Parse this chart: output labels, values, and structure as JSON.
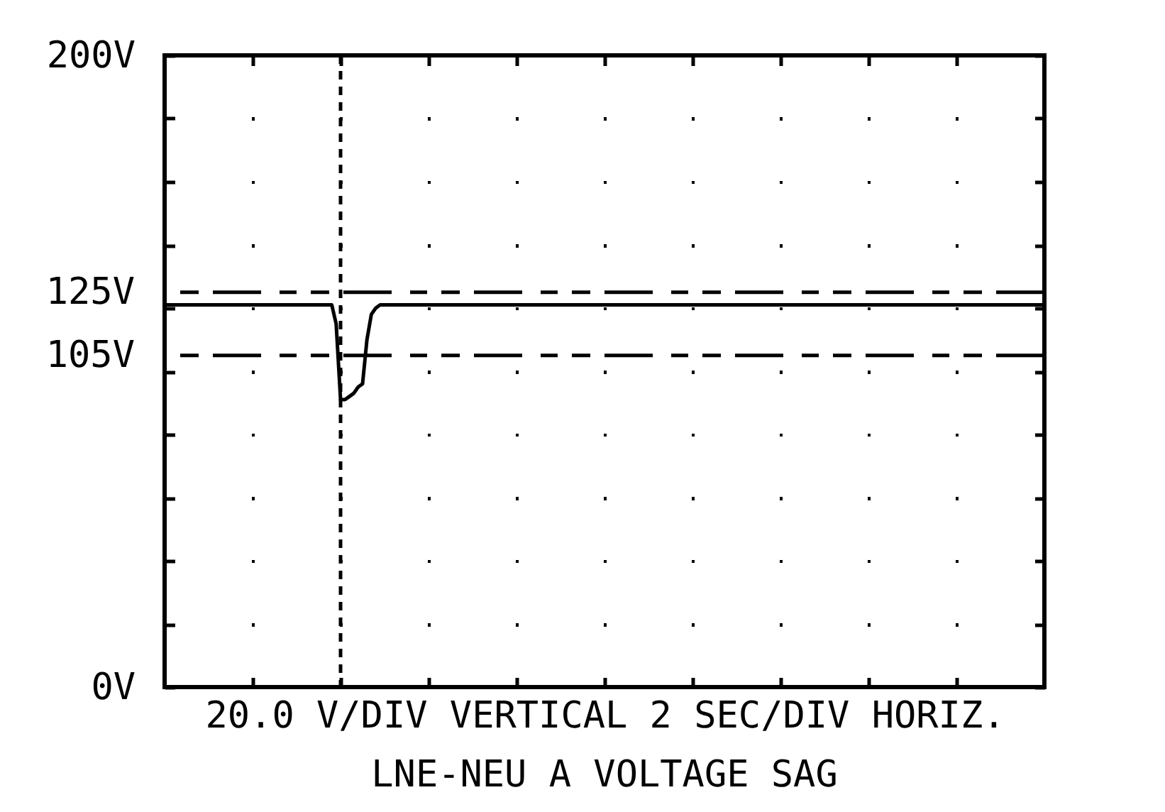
{
  "chart_data": {
    "type": "line",
    "title": "LNE-NEU A  VOLTAGE SAG",
    "xlabel": "20.0 V/DIV VERTICAL  2 SEC/DIV HORIZ.",
    "categories": [
      null,
      null,
      null,
      null,
      null,
      null,
      null,
      null,
      null,
      null,
      null,
      null,
      null,
      null,
      null,
      null,
      null,
      null,
      null,
      null,
      null,
      null,
      null,
      null,
      null,
      null,
      null,
      null,
      null,
      null,
      null,
      null,
      null,
      null,
      null,
      null,
      null,
      null,
      null,
      null,
      null,
      null,
      null,
      null,
      null,
      null,
      null,
      null,
      null,
      null,
      null,
      null,
      null,
      null,
      null,
      null,
      null,
      null,
      null,
      null,
      null,
      null,
      null,
      null,
      null,
      null,
      null,
      null,
      null,
      null,
      null,
      null,
      null,
      null,
      null,
      null,
      null,
      null,
      null,
      null,
      null,
      null,
      null,
      null,
      null,
      null,
      null,
      null,
      null,
      null,
      null,
      null,
      null,
      null,
      null,
      null,
      null,
      null,
      null,
      null,
      null,
      null,
      null,
      null,
      null,
      null,
      null,
      null,
      null,
      null,
      null,
      null,
      null,
      null,
      null,
      null,
      null,
      null,
      null,
      null,
      null,
      null,
      null,
      null,
      null,
      null,
      null,
      null,
      null,
      null,
      null,
      null,
      null,
      null,
      null,
      null,
      null,
      null,
      null,
      null,
      null,
      null,
      null,
      null,
      null,
      null,
      null,
      null,
      null,
      null,
      null,
      null,
      null,
      null,
      null,
      null,
      null,
      null,
      null,
      null,
      null,
      null,
      null,
      null,
      null,
      null,
      null,
      null,
      null,
      null,
      null,
      null,
      null,
      null,
      null,
      null,
      null,
      null,
      null,
      null,
      null,
      null,
      null,
      null,
      null,
      null,
      null,
      null,
      null,
      null,
      null,
      null,
      null,
      null,
      null,
      null,
      null,
      null,
      null,
      null,
      null
    ],
    "ylim": [
      0,
      200
    ],
    "yticks": [
      {
        "value": 0,
        "label": "0V"
      },
      {
        "value": 20,
        "label": null
      },
      {
        "value": 40,
        "label": null
      },
      {
        "value": 60,
        "label": null
      },
      {
        "value": 80,
        "label": null
      },
      {
        "value": 100,
        "label": null
      },
      {
        "value": 120,
        "label": null
      },
      {
        "value": 140,
        "label": null
      },
      {
        "value": 160,
        "label": null
      },
      {
        "value": 180,
        "label": null
      },
      {
        "value": 200,
        "label": "200V"
      }
    ],
    "tick_labels": "y",
    "grid": true,
    "line_style": "solid",
    "ref_lines": [
      {
        "axis": "y",
        "value": 125,
        "label": "125V",
        "line_style": "dashed"
      },
      {
        "axis": "y",
        "value": 105,
        "label": "105V",
        "line_style": "dashed"
      }
    ],
    "series": [
      {
        "color": "#000000",
        "values": [
          121,
          121,
          121,
          121,
          121,
          121,
          121,
          121,
          121,
          121,
          121,
          121,
          121,
          121,
          121,
          121,
          121,
          121,
          121,
          121,
          121,
          121,
          121,
          121,
          121,
          121,
          121,
          121,
          121,
          121,
          121,
          121,
          121,
          121,
          121,
          121,
          121,
          121,
          121,
          115,
          91,
          91,
          92,
          93,
          95,
          96,
          110,
          118,
          120,
          121,
          121,
          121,
          121,
          121,
          121,
          121,
          121,
          121,
          121,
          121,
          121,
          121,
          121,
          121,
          121,
          121,
          121,
          121,
          121,
          121,
          121,
          121,
          121,
          121,
          121,
          121,
          121,
          121,
          121,
          121,
          121,
          121,
          121,
          121,
          121,
          121,
          121,
          121,
          121,
          121,
          121,
          121,
          121,
          121,
          121,
          121,
          121,
          121,
          121,
          121,
          121,
          121,
          121,
          121,
          121,
          121,
          121,
          121,
          121,
          121,
          121,
          121,
          121,
          121,
          121,
          121,
          121,
          121,
          121,
          121,
          121,
          121,
          121,
          121,
          121,
          121,
          121,
          121,
          121,
          121,
          121,
          121,
          121,
          121,
          121,
          121,
          121,
          121,
          121,
          121,
          121,
          121,
          121,
          121,
          121,
          121,
          121,
          121,
          121,
          121,
          121,
          121,
          121,
          121,
          121,
          121,
          121,
          121,
          121,
          121,
          121,
          121,
          121,
          121,
          121,
          121,
          121,
          121,
          121,
          121,
          121,
          121,
          121,
          121,
          121,
          121,
          121,
          121,
          121,
          121,
          121,
          121,
          121,
          121,
          121,
          121,
          121,
          121,
          121,
          121,
          121,
          121,
          121,
          121,
          121,
          121,
          121,
          121,
          121,
          121,
          121
        ]
      }
    ]
  }
}
